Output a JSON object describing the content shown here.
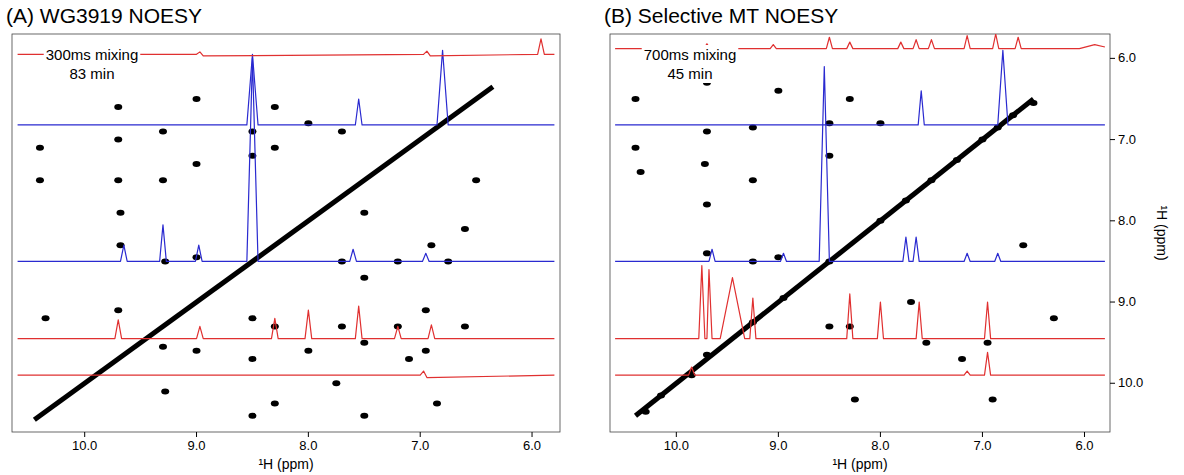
{
  "chart_data": [
    {
      "type": "scatter",
      "title": "(A) WG3919 NOESY",
      "annotations": [
        "300ms mixing",
        "83 min"
      ],
      "x_label": "¹H (ppm)",
      "xlim": [
        10.65,
        5.75
      ],
      "ylim": [
        5.7,
        10.6
      ],
      "xticks": [
        {
          "value": 10,
          "label": "10.0"
        },
        {
          "value": 9,
          "label": "9.0"
        },
        {
          "value": 8,
          "label": "8.0"
        },
        {
          "value": 7,
          "label": "7.0"
        },
        {
          "value": 6,
          "label": "6.0"
        }
      ],
      "tick_labels": "x",
      "grid": false,
      "series": [
        {
          "type": "line",
          "color": "#000000",
          "line_style": "solid",
          "x": [
            10.45,
            6.35
          ],
          "values": [
            10.45,
            6.35
          ]
        },
        {
          "type": "scatter",
          "color": "#000000",
          "marker": "circle",
          "x": [
            10.4,
            10.4,
            10.35,
            9.7,
            9.7,
            9.7,
            9.68,
            9.68,
            9.7,
            9.3,
            9.3,
            9.28,
            9.3,
            9.28,
            9.0,
            9.0,
            9.0,
            9.0,
            8.5,
            8.5,
            8.5,
            8.5,
            8.5,
            8.3,
            8.3,
            8.3,
            8.3,
            8.0,
            8.0,
            7.7,
            7.7,
            7.7,
            7.75,
            7.5,
            7.5,
            7.5,
            7.5,
            7.2,
            7.2,
            7.1,
            6.95,
            6.95,
            6.9,
            6.85,
            6.75,
            6.6,
            6.5,
            6.6
          ],
          "values": [
            7.1,
            7.5,
            9.2,
            6.6,
            7.0,
            7.5,
            7.9,
            8.3,
            9.1,
            6.9,
            7.5,
            8.5,
            9.55,
            10.1,
            6.5,
            7.3,
            8.45,
            9.6,
            6.9,
            7.2,
            9.2,
            9.7,
            10.4,
            6.6,
            7.1,
            9.3,
            10.25,
            6.8,
            9.6,
            6.9,
            8.5,
            9.3,
            10.0,
            7.9,
            8.7,
            9.5,
            10.4,
            8.5,
            9.3,
            9.7,
            9.1,
            9.6,
            8.3,
            10.25,
            8.5,
            9.3,
            7.5,
            8.1
          ]
        },
        {
          "type": "line",
          "color": "#2a2ad0",
          "line_style": "solid",
          "x": [
            10.6,
            8.55,
            8.5,
            8.45,
            7.58,
            7.55,
            7.52,
            6.85,
            6.8,
            6.75,
            5.8
          ],
          "values": [
            6.82,
            6.82,
            5.95,
            6.82,
            6.82,
            6.5,
            6.82,
            6.82,
            5.9,
            6.82,
            6.82
          ]
        },
        {
          "type": "line",
          "color": "#2a2ad0",
          "line_style": "solid",
          "x": [
            10.6,
            9.68,
            9.65,
            9.62,
            9.33,
            9.3,
            9.27,
            9.01,
            8.98,
            8.95,
            8.55,
            8.5,
            8.45,
            7.63,
            7.6,
            7.57,
            6.98,
            6.95,
            6.92,
            5.8
          ],
          "values": [
            8.5,
            8.5,
            8.3,
            8.5,
            8.5,
            8.05,
            8.5,
            8.5,
            8.3,
            8.5,
            8.5,
            6.0,
            8.5,
            8.5,
            8.35,
            8.5,
            8.5,
            8.4,
            8.5,
            8.5
          ]
        },
        {
          "type": "line",
          "color": "#e03030",
          "line_style": "solid",
          "x": [
            10.6,
            9.0,
            8.97,
            8.94,
            6.97,
            6.94,
            6.91,
            5.95,
            5.92,
            5.89,
            5.8
          ],
          "values": [
            5.95,
            5.95,
            5.92,
            5.97,
            5.95,
            5.91,
            5.97,
            5.95,
            5.76,
            5.95,
            5.95
          ]
        },
        {
          "type": "line",
          "color": "#e03030",
          "line_style": "solid",
          "x": [
            10.6,
            9.73,
            9.7,
            9.67,
            9.0,
            8.97,
            8.94,
            8.33,
            8.3,
            8.27,
            8.03,
            8.0,
            7.97,
            7.58,
            7.55,
            7.52,
            7.23,
            7.2,
            7.17,
            6.93,
            6.9,
            6.87,
            5.8
          ],
          "values": [
            9.45,
            9.45,
            9.22,
            9.45,
            9.45,
            9.3,
            9.45,
            9.45,
            9.2,
            9.45,
            9.45,
            9.1,
            9.45,
            9.45,
            9.05,
            9.45,
            9.45,
            9.3,
            9.45,
            9.45,
            9.28,
            9.45,
            9.45
          ]
        },
        {
          "type": "line",
          "color": "#e03030",
          "line_style": "solid",
          "x": [
            10.6,
            7.0,
            6.97,
            6.94,
            5.8
          ],
          "values": [
            9.9,
            9.9,
            9.85,
            9.93,
            9.9
          ]
        }
      ]
    },
    {
      "type": "scatter",
      "title": "(B) Selective MT NOESY",
      "annotations": [
        "700ms mixing",
        "45 min"
      ],
      "x_label": "¹H (ppm)",
      "y_label": "¹H (ppm)",
      "xlim": [
        10.65,
        5.75
      ],
      "ylim": [
        5.7,
        10.6
      ],
      "xticks": [
        {
          "value": 10,
          "label": "10.0"
        },
        {
          "value": 9,
          "label": "9.0"
        },
        {
          "value": 8,
          "label": "8.0"
        },
        {
          "value": 7,
          "label": "7.0"
        },
        {
          "value": 6,
          "label": "6.0"
        }
      ],
      "yticks": [
        {
          "value": 6,
          "label": "6.0"
        },
        {
          "value": 7,
          "label": "7.0"
        },
        {
          "value": 8,
          "label": "8.0"
        },
        {
          "value": 9,
          "label": "9.0"
        },
        {
          "value": 10,
          "label": "10.0"
        }
      ],
      "tick_labels": true,
      "grid": false,
      "series": [
        {
          "type": "line",
          "color": "#000000",
          "line_style": "solid",
          "x": [
            10.4,
            6.5
          ],
          "values": [
            10.4,
            6.5
          ]
        },
        {
          "type": "scatter",
          "color": "#000000",
          "marker": "circle",
          "x": [
            10.4,
            10.4,
            10.35,
            10.3,
            10.15,
            9.85,
            9.7,
            9.7,
            9.72,
            9.7,
            9.7,
            9.7,
            9.25,
            9.25,
            9.25,
            9.25,
            9.0,
            9.0,
            8.95,
            8.5,
            8.5,
            8.5,
            8.5,
            8.3,
            8.3,
            8.25,
            8.0,
            8.0,
            7.75,
            7.7,
            7.5,
            7.55,
            7.25,
            7.2,
            7.0,
            6.95,
            6.85,
            6.7,
            6.6,
            6.5,
            6.3,
            6.9
          ],
          "values": [
            6.5,
            7.1,
            7.4,
            10.35,
            10.15,
            9.9,
            6.3,
            6.9,
            7.3,
            7.8,
            8.4,
            9.65,
            6.85,
            7.5,
            8.5,
            9.25,
            6.4,
            8.45,
            8.95,
            6.8,
            7.2,
            8.5,
            9.3,
            6.5,
            9.3,
            10.2,
            6.8,
            8.0,
            7.75,
            9.0,
            7.5,
            9.5,
            7.25,
            9.7,
            7.0,
            9.5,
            6.85,
            6.7,
            8.3,
            6.55,
            9.2,
            10.2
          ]
        },
        {
          "type": "line",
          "color": "#e03030",
          "line_style": "solid",
          "x": [
            10.6,
            9.73,
            9.7,
            9.67,
            9.08,
            9.05,
            9.02,
            8.53,
            8.5,
            8.47,
            8.33,
            8.3,
            8.27,
            7.83,
            7.8,
            7.77,
            7.68,
            7.65,
            7.62,
            7.53,
            7.5,
            7.47,
            7.18,
            7.15,
            7.12,
            6.9,
            6.87,
            6.84,
            6.68,
            6.65,
            6.62,
            6.05,
            5.9,
            5.8
          ],
          "values": [
            5.88,
            5.88,
            5.82,
            5.88,
            5.88,
            5.83,
            5.88,
            5.88,
            5.74,
            5.88,
            5.88,
            5.8,
            5.88,
            5.88,
            5.8,
            5.88,
            5.88,
            5.77,
            5.88,
            5.88,
            5.77,
            5.88,
            5.88,
            5.72,
            5.88,
            5.88,
            5.7,
            5.88,
            5.88,
            5.74,
            5.88,
            5.88,
            5.83,
            5.86
          ]
        },
        {
          "type": "line",
          "color": "#2a2ad0",
          "line_style": "solid",
          "x": [
            10.6,
            7.63,
            7.6,
            7.57,
            6.85,
            6.8,
            6.75,
            5.8
          ],
          "values": [
            6.82,
            6.82,
            6.4,
            6.82,
            6.82,
            5.9,
            6.82,
            6.82
          ]
        },
        {
          "type": "line",
          "color": "#2a2ad0",
          "line_style": "solid",
          "x": [
            10.6,
            9.68,
            9.65,
            9.62,
            8.98,
            8.95,
            8.92,
            8.6,
            8.55,
            8.5,
            7.78,
            7.75,
            7.72,
            7.68,
            7.65,
            7.62,
            7.18,
            7.15,
            7.12,
            6.88,
            6.85,
            6.82,
            5.8
          ],
          "values": [
            8.5,
            8.5,
            8.35,
            8.5,
            8.5,
            8.4,
            8.5,
            8.5,
            6.1,
            8.5,
            8.5,
            8.2,
            8.5,
            8.5,
            8.2,
            8.5,
            8.5,
            8.4,
            8.5,
            8.5,
            8.4,
            8.5,
            8.5
          ]
        },
        {
          "type": "line",
          "color": "#e03030",
          "line_style": "solid",
          "x": [
            10.6,
            9.78,
            9.75,
            9.72,
            9.7,
            9.68,
            9.65,
            9.57,
            9.45,
            9.33,
            9.28,
            9.25,
            9.22,
            8.33,
            8.3,
            8.27,
            8.03,
            8.0,
            7.97,
            7.65,
            7.62,
            7.59,
            6.98,
            6.95,
            6.92,
            5.8
          ],
          "values": [
            9.45,
            9.45,
            8.55,
            9.45,
            9.45,
            8.6,
            9.45,
            9.45,
            8.7,
            9.45,
            9.45,
            8.95,
            9.45,
            9.45,
            8.9,
            9.45,
            9.45,
            9.0,
            9.45,
            9.45,
            9.0,
            9.45,
            9.45,
            9.0,
            9.45,
            9.45
          ]
        },
        {
          "type": "line",
          "color": "#e03030",
          "line_style": "solid",
          "x": [
            10.6,
            9.88,
            9.85,
            9.82,
            7.18,
            7.15,
            7.12,
            6.98,
            6.95,
            6.92,
            5.8
          ],
          "values": [
            9.9,
            9.9,
            9.8,
            9.9,
            9.9,
            9.85,
            9.9,
            9.9,
            9.62,
            9.9,
            9.9
          ]
        }
      ]
    }
  ]
}
